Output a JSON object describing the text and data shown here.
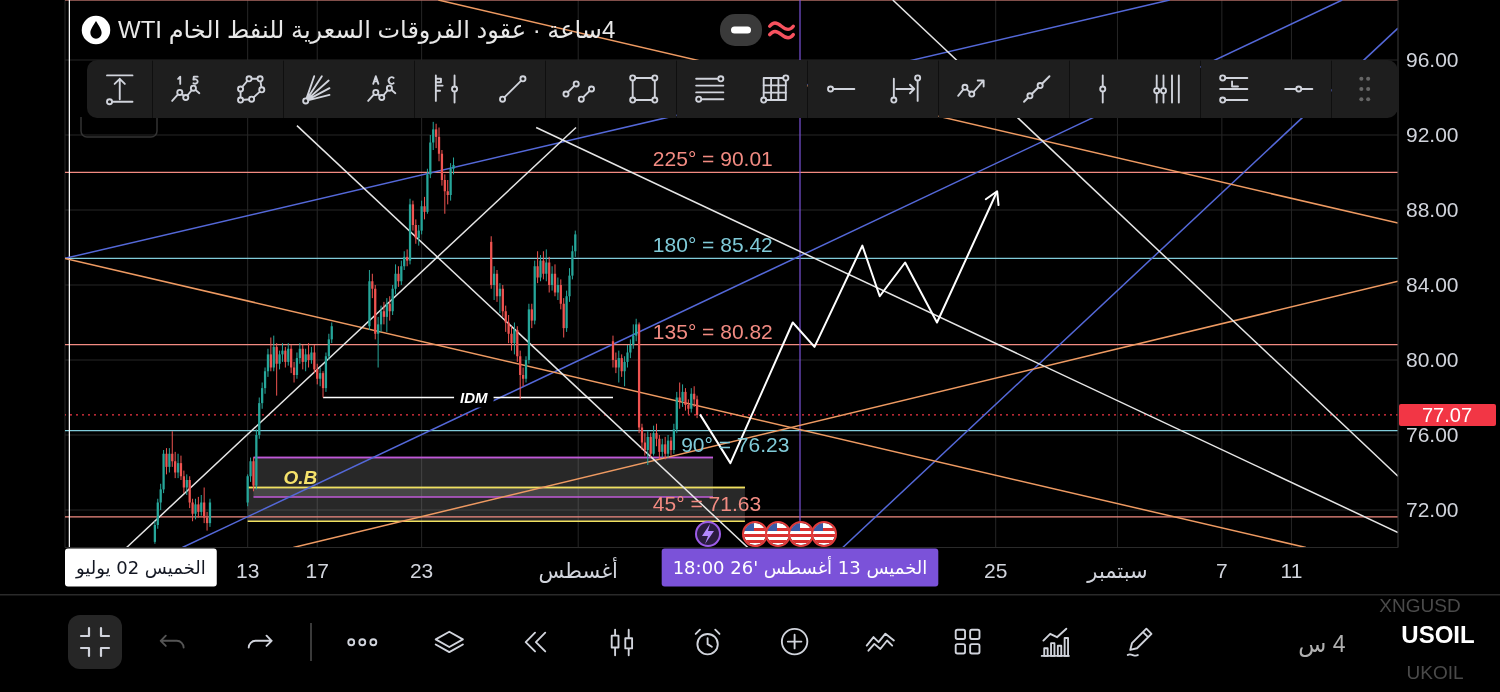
{
  "chart_data": {
    "type": "candlestick",
    "title": "4ساعة · عقود الفروقات السعرية للنفط الخام WTI",
    "x": [
      "2026-07-07T16:00",
      "2026-07-07T20:00",
      "2026-07-08T00:00",
      "2026-07-08T04:00",
      "2026-07-08T08:00",
      "2026-07-08T12:00",
      "2026-07-08T16:00",
      "2026-07-08T20:00",
      "2026-07-09T00:00",
      "2026-07-09T04:00",
      "2026-07-09T08:00",
      "2026-07-09T12:00",
      "2026-07-09T16:00",
      "2026-07-09T20:00",
      "2026-07-10T00:00",
      "2026-07-10T04:00",
      "2026-07-10T08:00",
      "2026-07-10T12:00",
      "2026-07-10T16:00",
      "2026-07-10T20:00",
      "2026-07-13T00:00",
      "2026-07-13T04:00",
      "2026-07-13T08:00",
      "2026-07-13T12:00",
      "2026-07-13T16:00",
      "2026-07-13T20:00",
      "2026-07-14T00:00",
      "2026-07-14T04:00",
      "2026-07-14T08:00",
      "2026-07-14T12:00",
      "2026-07-14T16:00",
      "2026-07-14T20:00",
      "2026-07-15T00:00",
      "2026-07-15T04:00",
      "2026-07-15T08:00",
      "2026-07-15T12:00",
      "2026-07-15T16:00",
      "2026-07-15T20:00",
      "2026-07-16T00:00",
      "2026-07-16T04:00",
      "2026-07-16T08:00",
      "2026-07-16T12:00",
      "2026-07-16T16:00",
      "2026-07-16T20:00",
      "2026-07-17T00:00",
      "2026-07-17T04:00",
      "2026-07-17T08:00",
      "2026-07-17T12:00",
      "2026-07-17T16:00",
      "2026-07-17T20:00",
      "2026-07-20T00:00",
      "2026-07-20T04:00",
      "2026-07-20T08:00",
      "2026-07-20T12:00",
      "2026-07-20T16:00",
      "2026-07-20T20:00",
      "2026-07-21T00:00",
      "2026-07-21T04:00",
      "2026-07-21T08:00",
      "2026-07-21T12:00",
      "2026-07-21T16:00",
      "2026-07-21T20:00",
      "2026-07-22T00:00",
      "2026-07-22T04:00",
      "2026-07-22T08:00",
      "2026-07-22T12:00",
      "2026-07-22T16:00",
      "2026-07-22T20:00",
      "2026-07-23T00:00",
      "2026-07-23T04:00",
      "2026-07-23T08:00",
      "2026-07-23T12:00",
      "2026-07-23T16:00",
      "2026-07-23T20:00",
      "2026-07-24T00:00",
      "2026-07-24T04:00",
      "2026-07-24T08:00",
      "2026-07-24T12:00",
      "2026-07-24T16:00",
      "2026-07-24T20:00",
      "2026-07-27T00:00",
      "2026-07-27T04:00",
      "2026-07-27T08:00",
      "2026-07-27T12:00",
      "2026-07-27T16:00",
      "2026-07-27T20:00",
      "2026-07-28T00:00",
      "2026-07-28T04:00",
      "2026-07-28T08:00",
      "2026-07-28T12:00",
      "2026-07-28T16:00",
      "2026-07-28T20:00",
      "2026-07-29T00:00",
      "2026-07-29T04:00",
      "2026-07-29T08:00",
      "2026-07-29T12:00",
      "2026-07-29T16:00",
      "2026-07-29T20:00",
      "2026-07-30T00:00",
      "2026-07-30T04:00",
      "2026-07-30T08:00",
      "2026-07-30T12:00",
      "2026-07-30T16:00",
      "2026-07-30T20:00",
      "2026-07-31T00:00",
      "2026-07-31T04:00",
      "2026-07-31T08:00",
      "2026-07-31T12:00",
      "2026-07-31T16:00",
      "2026-07-31T20:00",
      "2026-08-03T00:00",
      "2026-08-03T04:00",
      "2026-08-03T08:00",
      "2026-08-03T12:00",
      "2026-08-03T16:00",
      "2026-08-03T20:00",
      "2026-08-04T00:00",
      "2026-08-04T04:00",
      "2026-08-04T08:00",
      "2026-08-04T12:00",
      "2026-08-04T16:00",
      "2026-08-04T20:00",
      "2026-08-05T00:00",
      "2026-08-05T04:00",
      "2026-08-05T08:00",
      "2026-08-05T12:00",
      "2026-08-05T16:00",
      "2026-08-05T20:00",
      "2026-08-06T00:00",
      "2026-08-06T04:00",
      "2026-08-06T08:00",
      "2026-08-06T12:00",
      "2026-08-06T16:00",
      "2026-08-06T20:00",
      "2026-08-07T00:00",
      "2026-08-07T04:00",
      "2026-08-07T08:00",
      "2026-08-07T12:00",
      "2026-08-07T16:00",
      "2026-08-07T20:00"
    ],
    "ohlc": [
      [
        70.3,
        71.4,
        70.2,
        71.2
      ],
      [
        71.2,
        72.6,
        71.0,
        72.4
      ],
      [
        72.4,
        73.4,
        72.0,
        73.1
      ],
      [
        73.1,
        75.2,
        72.9,
        75.0
      ],
      [
        75.0,
        75.3,
        73.9,
        74.3
      ],
      [
        74.3,
        75.3,
        74.0,
        75.0
      ],
      [
        75.0,
        76.2,
        74.3,
        74.6
      ],
      [
        74.6,
        75.1,
        73.7,
        74.0
      ],
      [
        74.0,
        75.0,
        73.7,
        74.5
      ],
      [
        74.5,
        74.9,
        73.6,
        73.8
      ],
      [
        73.8,
        74.1,
        72.9,
        73.2
      ],
      [
        73.2,
        73.9,
        72.8,
        73.6
      ],
      [
        73.6,
        73.8,
        72.1,
        72.4
      ],
      [
        72.4,
        72.6,
        71.4,
        71.8
      ],
      [
        71.8,
        72.6,
        71.5,
        72.3
      ],
      [
        72.3,
        72.7,
        71.6,
        71.9
      ],
      [
        71.9,
        72.8,
        71.7,
        72.4
      ],
      [
        72.4,
        73.2,
        71.3,
        71.6
      ],
      [
        71.6,
        71.9,
        70.9,
        71.3
      ],
      [
        71.3,
        72.6,
        71.1,
        72.4
      ],
      [
        72.4,
        73.9,
        72.2,
        73.8
      ],
      [
        73.8,
        74.8,
        73.5,
        74.6
      ],
      [
        74.6,
        74.8,
        73.0,
        73.3
      ],
      [
        73.3,
        76.3,
        73.1,
        76.0
      ],
      [
        76.0,
        78.0,
        75.8,
        77.7
      ],
      [
        77.7,
        78.8,
        77.4,
        78.5
      ],
      [
        78.5,
        79.6,
        78.2,
        79.4
      ],
      [
        79.4,
        80.6,
        79.1,
        80.3
      ],
      [
        80.3,
        81.2,
        79.4,
        79.6
      ],
      [
        79.6,
        81.3,
        79.4,
        80.7
      ],
      [
        80.7,
        80.9,
        78.1,
        79.8
      ],
      [
        79.8,
        80.5,
        79.5,
        80.3
      ],
      [
        80.3,
        80.9,
        79.9,
        80.5
      ],
      [
        80.5,
        80.7,
        79.6,
        79.9
      ],
      [
        79.9,
        80.9,
        79.7,
        80.6
      ],
      [
        80.6,
        80.8,
        79.3,
        79.6
      ],
      [
        79.6,
        79.9,
        78.8,
        79.2
      ],
      [
        79.2,
        80.4,
        79.0,
        80.1
      ],
      [
        80.1,
        80.9,
        79.8,
        80.6
      ],
      [
        80.6,
        80.8,
        79.5,
        79.9
      ],
      [
        79.9,
        80.6,
        79.4,
        80.3
      ],
      [
        80.3,
        80.9,
        79.6,
        80.0
      ],
      [
        80.0,
        80.7,
        79.8,
        80.4
      ],
      [
        80.4,
        80.8,
        79.3,
        79.5
      ],
      [
        79.5,
        79.8,
        78.7,
        79.0
      ],
      [
        79.0,
        79.6,
        78.6,
        79.3
      ],
      [
        79.3,
        79.4,
        78.0,
        78.5
      ],
      [
        78.5,
        80.4,
        78.3,
        80.2
      ],
      [
        80.2,
        81.4,
        80.0,
        81.1
      ],
      [
        81.1,
        82.0,
        80.9,
        81.8
      ],
      [
        81.8,
        84.8,
        81.6,
        84.2
      ],
      [
        84.2,
        84.6,
        83.3,
        83.8
      ],
      [
        83.8,
        84.0,
        81.1,
        81.4
      ],
      [
        81.4,
        82.3,
        79.6,
        81.9
      ],
      [
        81.9,
        82.9,
        81.5,
        82.6
      ],
      [
        82.6,
        83.1,
        81.9,
        82.3
      ],
      [
        82.3,
        83.3,
        81.5,
        83.0
      ],
      [
        83.0,
        83.4,
        82.1,
        82.6
      ],
      [
        82.6,
        84.0,
        82.4,
        83.8
      ],
      [
        83.8,
        85.1,
        83.5,
        84.6
      ],
      [
        84.6,
        85.0,
        83.9,
        84.2
      ],
      [
        84.2,
        85.3,
        84.0,
        85.0
      ],
      [
        85.0,
        85.8,
        84.8,
        85.5
      ],
      [
        85.5,
        85.9,
        85.0,
        85.3
      ],
      [
        85.3,
        88.6,
        85.1,
        88.3
      ],
      [
        88.3,
        88.5,
        86.9,
        87.2
      ],
      [
        87.2,
        87.5,
        86.2,
        86.5
      ],
      [
        86.5,
        87.2,
        86.1,
        86.9
      ],
      [
        86.9,
        88.5,
        86.7,
        88.2
      ],
      [
        88.2,
        88.7,
        87.5,
        87.9
      ],
      [
        87.9,
        90.2,
        87.8,
        89.9
      ],
      [
        89.9,
        92.0,
        89.7,
        91.6
      ],
      [
        91.6,
        92.7,
        91.2,
        92.3
      ],
      [
        92.3,
        92.6,
        91.3,
        91.9
      ],
      [
        91.9,
        92.4,
        90.6,
        91.0
      ],
      [
        91.0,
        91.2,
        89.3,
        89.6
      ],
      [
        89.6,
        89.9,
        87.8,
        89.0
      ],
      [
        89.0,
        89.6,
        88.3,
        88.8
      ],
      [
        88.8,
        90.5,
        88.5,
        90.2
      ],
      [
        90.2,
        90.8,
        89.9,
        90.4
      ],
      [
        86.3,
        86.6,
        83.8,
        84.0
      ],
      [
        84.0,
        85.0,
        83.2,
        84.6
      ],
      [
        84.6,
        84.8,
        83.1,
        83.4
      ],
      [
        83.4,
        84.1,
        82.5,
        83.8
      ],
      [
        83.8,
        84.0,
        82.3,
        82.6
      ],
      [
        82.6,
        82.9,
        81.5,
        82.0
      ],
      [
        82.0,
        82.4,
        80.9,
        81.4
      ],
      [
        81.4,
        81.8,
        80.5,
        80.9
      ],
      [
        80.9,
        82.0,
        80.3,
        81.6
      ],
      [
        81.6,
        81.8,
        79.9,
        80.2
      ],
      [
        80.2,
        80.5,
        77.9,
        79.2
      ],
      [
        79.2,
        79.6,
        78.6,
        79.0
      ],
      [
        79.0,
        80.2,
        78.8,
        80.0
      ],
      [
        80.0,
        83.0,
        79.8,
        82.7
      ],
      [
        82.7,
        83.0,
        81.7,
        82.1
      ],
      [
        82.1,
        85.3,
        81.9,
        85.0
      ],
      [
        85.0,
        85.8,
        84.1,
        84.4
      ],
      [
        84.4,
        85.6,
        84.2,
        85.3
      ],
      [
        85.3,
        85.8,
        84.3,
        84.6
      ],
      [
        84.6,
        85.9,
        84.2,
        85.2
      ],
      [
        85.2,
        85.5,
        83.6,
        84.0
      ],
      [
        84.0,
        85.0,
        83.7,
        84.6
      ],
      [
        84.6,
        85.1,
        83.4,
        83.6
      ],
      [
        83.6,
        84.4,
        83.2,
        84.0
      ],
      [
        84.0,
        84.3,
        82.7,
        83.0
      ],
      [
        83.0,
        83.3,
        81.2,
        81.7
      ],
      [
        81.7,
        83.7,
        81.5,
        83.4
      ],
      [
        83.4,
        84.9,
        83.1,
        84.5
      ],
      [
        84.5,
        86.1,
        84.3,
        85.8
      ],
      [
        85.8,
        86.9,
        85.5,
        86.7
      ],
      [
        81.0,
        81.3,
        79.6,
        80.0
      ],
      [
        80.0,
        80.4,
        79.3,
        79.6
      ],
      [
        79.6,
        80.5,
        78.8,
        80.1
      ],
      [
        80.1,
        80.3,
        79.1,
        79.4
      ],
      [
        79.4,
        80.2,
        78.6,
        79.9
      ],
      [
        79.9,
        80.8,
        79.6,
        80.4
      ],
      [
        80.4,
        81.1,
        80.1,
        80.8
      ],
      [
        80.8,
        81.9,
        80.6,
        81.3
      ],
      [
        81.3,
        82.2,
        81.0,
        81.9
      ],
      [
        81.9,
        82.0,
        76.1,
        76.4
      ],
      [
        76.4,
        76.6,
        75.2,
        75.6
      ],
      [
        75.6,
        76.1,
        74.9,
        75.2
      ],
      [
        75.2,
        76.2,
        74.4,
        75.9
      ],
      [
        75.9,
        76.1,
        74.8,
        75.0
      ],
      [
        75.0,
        76.5,
        74.9,
        76.1
      ],
      [
        76.1,
        76.6,
        75.4,
        75.8
      ],
      [
        75.8,
        76.0,
        74.7,
        75.1
      ],
      [
        75.1,
        75.8,
        74.8,
        75.5
      ],
      [
        75.5,
        75.9,
        74.7,
        75.0
      ],
      [
        75.0,
        76.0,
        74.8,
        75.7
      ],
      [
        75.7,
        75.9,
        74.9,
        75.2
      ],
      [
        75.2,
        76.6,
        75.0,
        76.3
      ],
      [
        76.3,
        78.3,
        76.1,
        78.0
      ],
      [
        78.0,
        78.8,
        77.4,
        77.8
      ],
      [
        77.8,
        78.7,
        77.5,
        78.3
      ],
      [
        78.3,
        78.5,
        77.3,
        77.6
      ],
      [
        77.6,
        77.9,
        77.1,
        77.4
      ],
      [
        77.4,
        78.5,
        77.2,
        78.2
      ],
      [
        78.2,
        78.6,
        77.5,
        77.9
      ],
      [
        77.9,
        78.1,
        76.9,
        77.07
      ]
    ],
    "colors": [
      "#26a69a",
      "#26a69a",
      "#26a69a",
      "#26a69a",
      "#ef5350",
      "#26a69a",
      "#ef5350",
      "#ef5350",
      "#26a69a",
      "#ef5350",
      "#ef5350",
      "#26a69a",
      "#ef5350",
      "#ef5350",
      "#26a69a",
      "#ef5350",
      "#26a69a",
      "#ef5350",
      "#ef5350",
      "#26a69a",
      "#26a69a",
      "#26a69a",
      "#ef5350",
      "#26a69a",
      "#26a69a",
      "#26a69a",
      "#26a69a",
      "#26a69a",
      "#ef5350",
      "#26a69a",
      "#ef5350",
      "#26a69a",
      "#26a69a",
      "#ef5350",
      "#26a69a",
      "#ef5350",
      "#ef5350",
      "#26a69a",
      "#26a69a",
      "#ef5350",
      "#26a69a",
      "#ef5350",
      "#26a69a",
      "#ef5350",
      "#ef5350",
      "#26a69a",
      "#ef5350",
      "#26a69a",
      "#26a69a",
      "#26a69a",
      "#26a69a",
      "#ef5350",
      "#ef5350",
      "#26a69a",
      "#26a69a",
      "#ef5350",
      "#26a69a",
      "#ef5350",
      "#26a69a",
      "#26a69a",
      "#ef5350",
      "#26a69a",
      "#26a69a",
      "#ef5350",
      "#26a69a",
      "#ef5350",
      "#ef5350",
      "#26a69a",
      "#26a69a",
      "#ef5350",
      "#26a69a",
      "#26a69a",
      "#26a69a",
      "#ef5350",
      "#ef5350",
      "#ef5350",
      "#ef5350",
      "#ef5350",
      "#26a69a",
      "#26a69a",
      "#ef5350",
      "#26a69a",
      "#ef5350",
      "#26a69a",
      "#ef5350",
      "#ef5350",
      "#ef5350",
      "#ef5350",
      "#26a69a",
      "#ef5350",
      "#ef5350",
      "#ef5350",
      "#26a69a",
      "#26a69a",
      "#ef5350",
      "#26a69a",
      "#ef5350",
      "#26a69a",
      "#ef5350",
      "#26a69a",
      "#ef5350",
      "#26a69a",
      "#ef5350",
      "#26a69a",
      "#ef5350",
      "#ef5350",
      "#26a69a",
      "#26a69a",
      "#26a69a",
      "#26a69a",
      "#ef5350",
      "#ef5350",
      "#26a69a",
      "#ef5350",
      "#26a69a",
      "#26a69a",
      "#26a69a",
      "#26a69a",
      "#26a69a",
      "#ef5350",
      "#ef5350",
      "#ef5350",
      "#26a69a",
      "#ef5350",
      "#26a69a",
      "#ef5350",
      "#ef5350",
      "#26a69a",
      "#ef5350",
      "#26a69a",
      "#ef5350",
      "#26a69a",
      "#26a69a",
      "#ef5350",
      "#26a69a",
      "#ef5350",
      "#ef5350",
      "#26a69a",
      "#ef5350",
      "#ef5350"
    ],
    "series": [
      {
        "type": "line",
        "x": [
          "2026-07-13T00:00",
          "2026-08-10T14:00"
        ],
        "values": [
          73.2,
          73.2
        ],
        "lower": [
          71.4,
          71.4
        ],
        "upper": [
          73.2,
          73.2
        ],
        "color": "#f0e060"
      },
      {
        "name": "O.B",
        "type": "line",
        "x": [
          "2026-07-13T08:00",
          "2026-08-08T18:00"
        ],
        "values": [
          74.8,
          74.8
        ],
        "lower": [
          72.7,
          72.7
        ],
        "upper": [
          74.8,
          74.8
        ],
        "color": "#c05ad8"
      },
      {
        "type": "line",
        "x": [
          "2026-07-02T12:00",
          "2026-09-04T00:00"
        ],
        "values": [
          85.42,
          99.2
        ],
        "color": "#5468d8"
      },
      {
        "type": "line",
        "x": [
          "2026-07-09T06:00",
          "2026-09-13T22:00"
        ],
        "values": [
          70.0,
          99.2
        ],
        "color": "#5468d8"
      },
      {
        "type": "line",
        "x": [
          "2026-08-16T05:00",
          "2026-09-17T03:00"
        ],
        "values": [
          70.0,
          97.7
        ],
        "color": "#5468d8"
      },
      {
        "type": "line",
        "x": [
          "2026-07-02T12:00",
          "2026-09-11T20:00"
        ],
        "values": [
          85.42,
          70.0
        ],
        "color": "#ee9a62"
      },
      {
        "type": "line",
        "x": [
          "2026-07-15T15:00",
          "2026-09-17T03:00"
        ],
        "values": [
          70.0,
          84.2
        ],
        "color": "#ee9a62"
      },
      {
        "type": "line",
        "x": [
          "2026-07-23T23:00",
          "2026-09-17T03:00"
        ],
        "values": [
          99.2,
          87.3
        ],
        "color": "#ee9a62"
      },
      {
        "type": "line",
        "x": [
          "2026-07-15T20:00",
          "2026-08-10T18:00"
        ],
        "values": [
          92.5,
          70.0
        ],
        "color": "#e6e6e6"
      },
      {
        "type": "line",
        "x": [
          "2026-07-06T01:00",
          "2026-07-31T21:00"
        ],
        "values": [
          70.0,
          92.4
        ],
        "color": "#e6e6e6"
      },
      {
        "type": "line",
        "x": [
          "2026-08-19T02:00",
          "2026-09-17T03:00"
        ],
        "values": [
          99.2,
          73.8
        ],
        "color": "#e6e6e6"
      },
      {
        "type": "line",
        "x": [
          "2026-07-29T14:00",
          "2026-09-17T03:00"
        ],
        "values": [
          92.4,
          70.8
        ],
        "color": "#e6e6e6"
      },
      {
        "type": "line",
        "x": [
          "2026-07-17T08:00",
          "2026-08-03T00:00"
        ],
        "values": [
          78.0,
          78.0
        ],
        "color": "#ffffff"
      },
      {
        "type": "line",
        "x": [
          "2026-08-08T00:00",
          "2026-08-09T18:00",
          "2026-08-13T08:00",
          "2026-08-14T14:00",
          "2026-08-17T08:00",
          "2026-08-18T08:00",
          "2026-08-19T19:00",
          "2026-08-21T15:00",
          "2026-08-25T02:00"
        ],
        "values": [
          77.1,
          74.5,
          82.0,
          80.7,
          86.1,
          83.4,
          85.2,
          82.0,
          89.0
        ],
        "color": "#ffffff"
      }
    ],
    "xlim": [
      "2026-07-02T12:00",
      "2026-09-17T03:00"
    ],
    "xticks": [
      {
        "value": "2026-07-13",
        "label": "13"
      },
      {
        "value": "2026-07-17",
        "label": "17"
      },
      {
        "value": "2026-07-23",
        "label": "23"
      },
      {
        "value": "2026-08-01",
        "label": "أغسطس"
      },
      {
        "value": "2026-08-25",
        "label": "25"
      },
      {
        "value": "2026-09-01",
        "label": "سبتمبر"
      },
      {
        "value": "2026-09-07",
        "label": "7"
      },
      {
        "value": "2026-09-11",
        "label": "11"
      }
    ],
    "ylim": [
      70,
      99.2
    ],
    "yticks": [
      {
        "value": 72,
        "label": "72.00"
      },
      {
        "value": 76,
        "label": "76.00"
      },
      {
        "value": 80,
        "label": "80.00"
      },
      {
        "value": 84,
        "label": "84.00"
      },
      {
        "value": 88,
        "label": "88.00"
      },
      {
        "value": 92,
        "label": "92.00"
      },
      {
        "value": 96,
        "label": "96.00"
      }
    ],
    "ref_lines": [
      {
        "axis": "y",
        "value": 99.2,
        "color": "#f28b82"
      },
      {
        "axis": "y",
        "value": 90.01,
        "label": "225° = 90.01",
        "color": "#f28b82"
      },
      {
        "axis": "y",
        "value": 85.42,
        "label": "180° = 85.42",
        "color": "#80cbd9"
      },
      {
        "axis": "y",
        "value": 80.82,
        "label": "135° = 80.82",
        "color": "#f28b82"
      },
      {
        "axis": "y",
        "value": 76.23,
        "label": "90° = 76.23",
        "color": "#80cbd9"
      },
      {
        "axis": "y",
        "value": 71.63,
        "label": "45° = 71.63",
        "color": "#f28b82"
      },
      {
        "axis": "y",
        "value": 77.07,
        "label": "77.07",
        "color": "#f23645",
        "line_style": "dotted"
      },
      {
        "axis": "x",
        "value": "2026-07-02T18:00",
        "label": "الخميس 02 يوليو",
        "color": "#ffffff"
      },
      {
        "axis": "x",
        "value": "2026-08-13T18:00",
        "label": "الخميس 13 أغسطس '26 18:00",
        "color": "#7b52d9"
      }
    ],
    "annotations": [
      {
        "text": "IDM",
        "x": "2026-07-26T00:00",
        "y": 78.0
      },
      "4 س",
      "XNGUSD",
      "USOIL",
      "UKOIL"
    ],
    "grid": true
  }
}
